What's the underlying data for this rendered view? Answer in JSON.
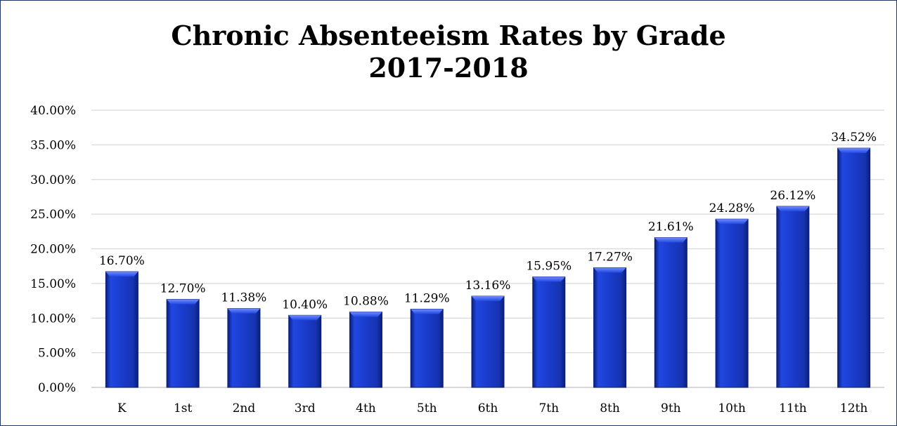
{
  "chart_data": {
    "type": "bar",
    "title_line1": "Chronic Absenteeism Rates by Grade",
    "title_line2": "2017-2018",
    "categories": [
      "K",
      "1st",
      "2nd",
      "3rd",
      "4th",
      "5th",
      "6th",
      "7th",
      "8th",
      "9th",
      "10th",
      "11th",
      "12th"
    ],
    "values": [
      16.7,
      12.7,
      11.38,
      10.4,
      10.88,
      11.29,
      13.16,
      15.95,
      17.27,
      21.61,
      24.28,
      26.12,
      34.52
    ],
    "value_labels": [
      "16.70%",
      "12.70%",
      "11.38%",
      "10.40%",
      "10.88%",
      "11.29%",
      "13.16%",
      "15.95%",
      "17.27%",
      "21.61%",
      "24.28%",
      "26.12%",
      "34.52%"
    ],
    "yticks": [
      0,
      5,
      10,
      15,
      20,
      25,
      30,
      35,
      40
    ],
    "ytick_labels": [
      "0.00%",
      "5.00%",
      "10.00%",
      "15.00%",
      "20.00%",
      "25.00%",
      "30.00%",
      "35.00%",
      "40.00%"
    ],
    "ylim": [
      0,
      40
    ],
    "grid": true,
    "legend": "none",
    "colors": {
      "bar": "#1a3ccc",
      "bar_dark": "#0a1f7a",
      "bar_light": "#5a7bff",
      "grid": "#d9d9d9",
      "frame": "#1f3864"
    }
  }
}
